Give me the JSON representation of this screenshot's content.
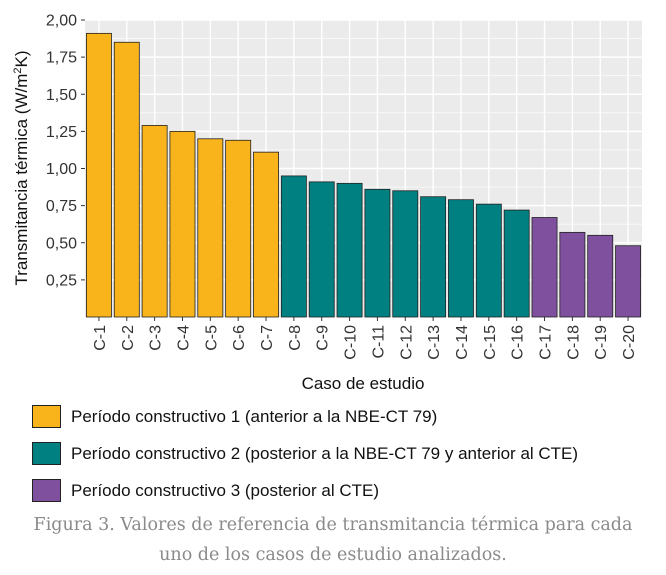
{
  "chart_data": {
    "type": "bar",
    "categories": [
      "C-1",
      "C-2",
      "C-3",
      "C-4",
      "C-5",
      "C-6",
      "C-7",
      "C-8",
      "C-9",
      "C-10",
      "C-11",
      "C-12",
      "C-13",
      "C-14",
      "C-15",
      "C-16",
      "C-17",
      "C-18",
      "C-19",
      "C-20"
    ],
    "values": [
      1.91,
      1.85,
      1.29,
      1.25,
      1.2,
      1.19,
      1.11,
      0.95,
      0.91,
      0.9,
      0.86,
      0.85,
      0.81,
      0.79,
      0.76,
      0.72,
      0.67,
      0.57,
      0.55,
      0.48
    ],
    "groups": [
      1,
      1,
      1,
      1,
      1,
      1,
      1,
      2,
      2,
      2,
      2,
      2,
      2,
      2,
      2,
      2,
      3,
      3,
      3,
      3
    ],
    "ylabel": "Transmitancia térmica (W/m²K)",
    "xlabel": "Caso de estudio",
    "ylim": [
      0,
      2.0
    ],
    "yticks": [
      "0,25",
      "0,50",
      "0,75",
      "1,00",
      "1,25",
      "1,50",
      "1,75",
      "2,00"
    ],
    "grid": true,
    "legend": [
      {
        "group": 1,
        "label": "Período constructivo 1 (anterior a la NBE-CT 79)",
        "color": "#f9b31b"
      },
      {
        "group": 2,
        "label": "Período constructivo 2 (posterior a la NBE-CT 79 y anterior al CTE)",
        "color": "#008080"
      },
      {
        "group": 3,
        "label": "Período constructivo 3 (posterior al CTE)",
        "color": "#7e509e"
      }
    ],
    "panel_background": "#ebebeb"
  },
  "caption": {
    "line1": "Figura 3. Valores de referencia de transmitancia térmica para cada",
    "line2": "uno de los casos de estudio analizados."
  }
}
